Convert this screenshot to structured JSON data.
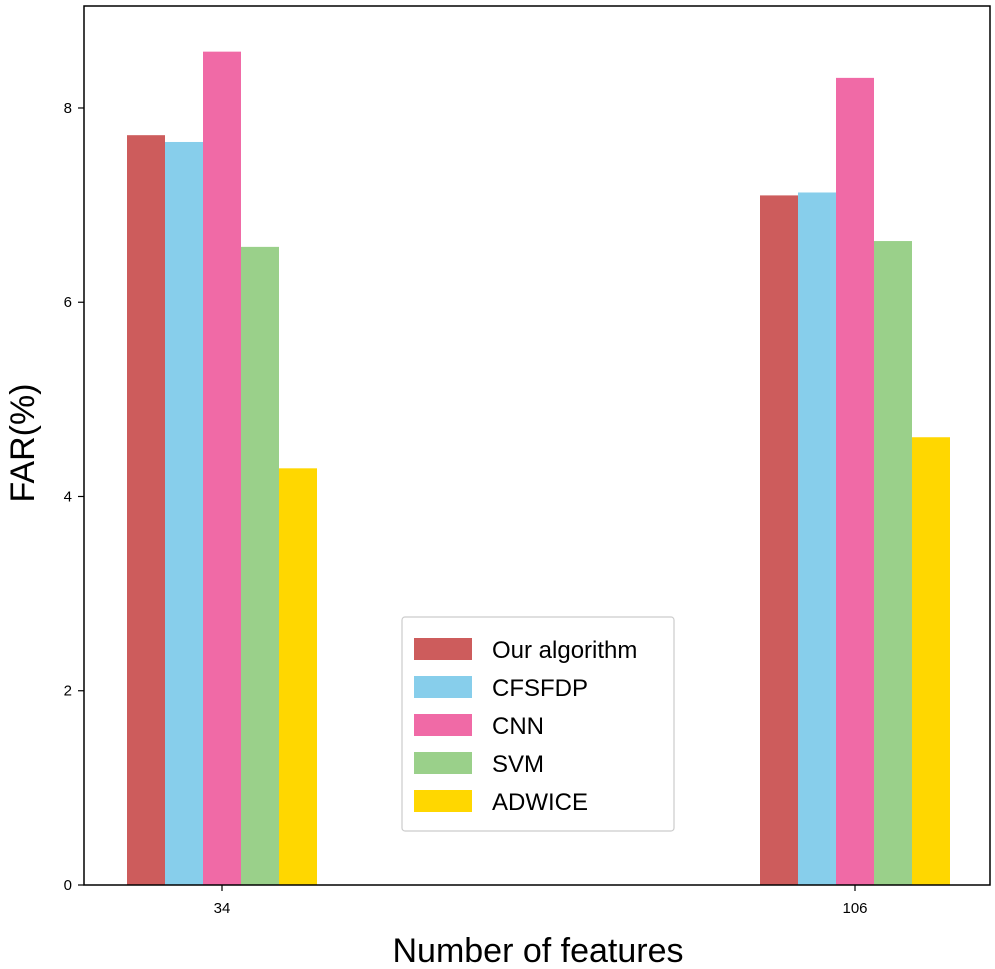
{
  "chart_data": {
    "type": "bar",
    "title": "",
    "xlabel": "Number of features",
    "ylabel": "FAR(%)",
    "categories": [
      "34",
      "106"
    ],
    "ylim": [
      0,
      9.05
    ],
    "yticks": [
      0,
      2,
      4,
      6,
      8
    ],
    "grid": false,
    "legend_position": "lower-center",
    "series": [
      {
        "name": "Our algorithm",
        "color": "#cd5c5c",
        "values": [
          7.72,
          7.1
        ]
      },
      {
        "name": "CFSFDP",
        "color": "#87ceeb",
        "values": [
          7.65,
          7.13
        ]
      },
      {
        "name": "CNN",
        "color": "#f06aa6",
        "values": [
          8.58,
          8.31
        ]
      },
      {
        "name": "SVM",
        "color": "#9ad08a",
        "values": [
          6.57,
          6.63
        ]
      },
      {
        "name": "ADWICE",
        "color": "#ffd700",
        "values": [
          4.29,
          4.61
        ]
      }
    ]
  }
}
